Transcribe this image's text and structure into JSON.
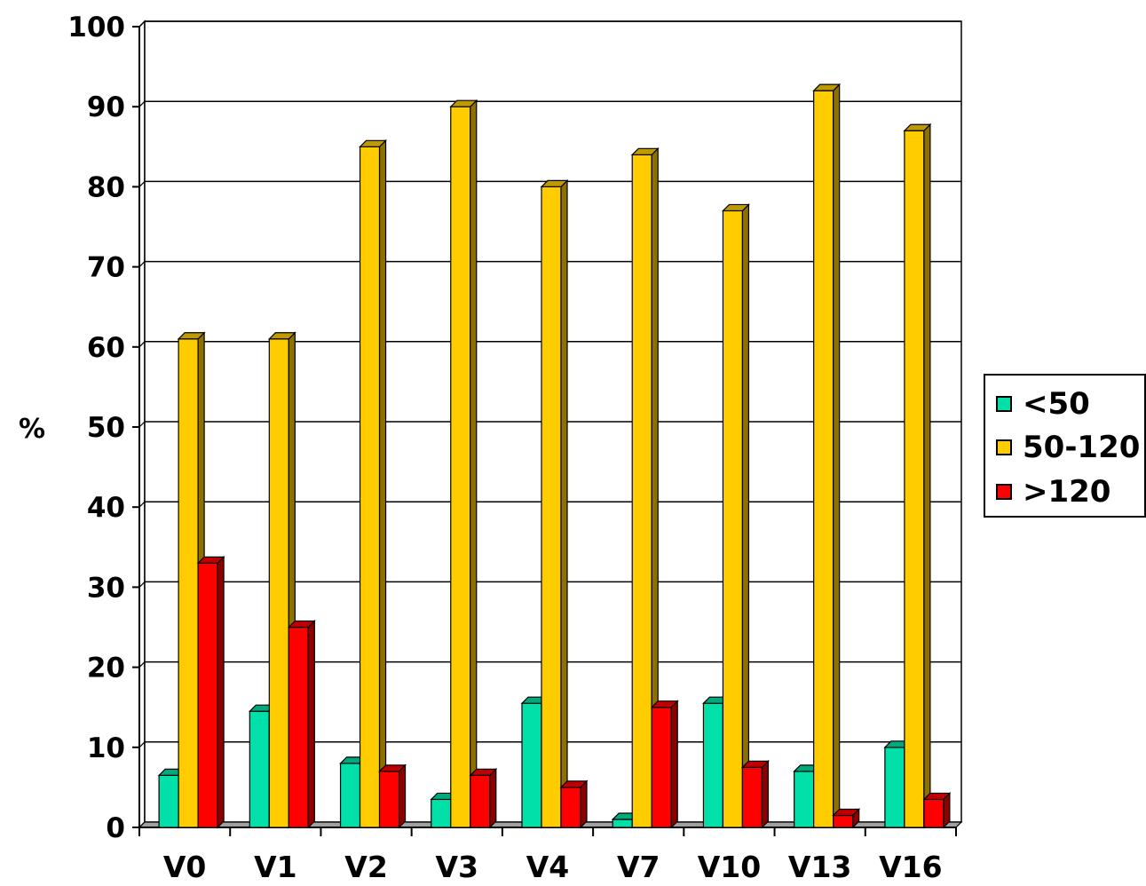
{
  "chart_data": {
    "type": "bar",
    "title": "",
    "xlabel": "",
    "ylabel": "%",
    "ylim": [
      0,
      100
    ],
    "yticks": [
      "0",
      "10",
      "20",
      "30",
      "40",
      "50",
      "60",
      "70",
      "80",
      "90",
      "100"
    ],
    "grid": true,
    "legend_position": "right",
    "style": "3d-columns",
    "categories": [
      "V0",
      "V1",
      "V2",
      "V3",
      "V4",
      "V7",
      "V10",
      "V13",
      "V16"
    ],
    "series": [
      {
        "name": "<50",
        "color": "#00e0a8",
        "values": [
          6.5,
          14.5,
          8,
          3.5,
          15.5,
          1,
          15.5,
          7,
          10
        ]
      },
      {
        "name": "50-120",
        "color": "#ffcc00",
        "values": [
          61,
          61,
          85,
          90,
          80,
          84,
          77,
          92,
          87
        ]
      },
      {
        "name": ">120",
        "color": "#ff0000",
        "values": [
          33,
          25,
          7,
          6.5,
          5,
          15,
          7.5,
          1.5,
          3.5
        ]
      }
    ]
  }
}
